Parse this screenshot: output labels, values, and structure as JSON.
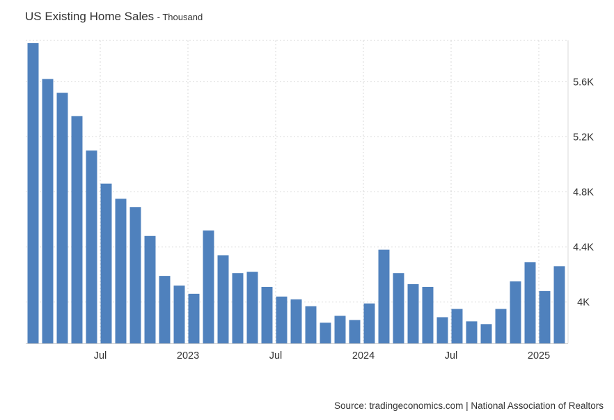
{
  "header": {
    "title": "US Existing Home Sales",
    "unit": "- Thousand"
  },
  "footer": {
    "source": "Source: tradingeconomics.com | National Association of Realtors"
  },
  "colors": {
    "bar": "#4f81bd",
    "grid": "#d9d9d9",
    "text": "#333333"
  },
  "chart_data": {
    "type": "bar",
    "title": "US Existing Home Sales",
    "ylabel": "Thousand",
    "xlabel": "",
    "categories": [
      "2022-02",
      "2022-03",
      "2022-04",
      "2022-05",
      "2022-06",
      "2022-07",
      "2022-08",
      "2022-09",
      "2022-10",
      "2022-11",
      "2022-12",
      "2023-01",
      "2023-02",
      "2023-03",
      "2023-04",
      "2023-05",
      "2023-06",
      "2023-07",
      "2023-08",
      "2023-09",
      "2023-10",
      "2023-11",
      "2023-12",
      "2024-01",
      "2024-02",
      "2024-03",
      "2024-04",
      "2024-05",
      "2024-06",
      "2024-07",
      "2024-08",
      "2024-09",
      "2024-10",
      "2024-11",
      "2024-12",
      "2025-01",
      "2025-02"
    ],
    "values": [
      5.88,
      5.62,
      5.52,
      5.35,
      5.1,
      4.86,
      4.75,
      4.69,
      4.48,
      4.19,
      4.12,
      4.06,
      4.52,
      4.34,
      4.21,
      4.22,
      4.11,
      4.04,
      4.02,
      3.97,
      3.85,
      3.9,
      3.87,
      3.99,
      4.38,
      4.21,
      4.13,
      4.11,
      3.89,
      3.95,
      3.86,
      3.84,
      3.95,
      4.15,
      4.29,
      4.08,
      4.26
    ],
    "ylim": [
      3.7,
      5.9
    ],
    "yticks": [
      4.0,
      4.4,
      4.8,
      5.2,
      5.6
    ],
    "ytick_labels": [
      "4K",
      "4.4K",
      "4.8K",
      "5.2K",
      "5.6K"
    ],
    "xtick_labels": [
      {
        "category": "2022-07",
        "label": "Jul"
      },
      {
        "category": "2023-01",
        "label": "2023"
      },
      {
        "category": "2023-07",
        "label": "Jul"
      },
      {
        "category": "2024-01",
        "label": "2024"
      },
      {
        "category": "2024-07",
        "label": "Jul"
      },
      {
        "category": "2025-01",
        "label": "2025"
      }
    ],
    "grid": true,
    "y_axis_position": "right"
  }
}
